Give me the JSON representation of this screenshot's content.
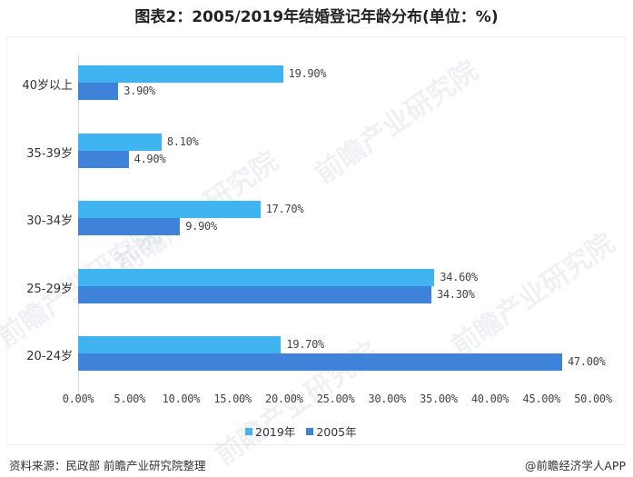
{
  "title": "图表2：2005/2019年结婚登记年龄分布(单位：%)",
  "chart_data": {
    "type": "bar",
    "orientation": "horizontal",
    "title": "图表2：2005/2019年结婚登记年龄分布(单位：%)",
    "categories": [
      "40岁以上",
      "35-39岁",
      "30-34岁",
      "25-29岁",
      "20-24岁"
    ],
    "series": [
      {
        "name": "2019年",
        "color": "#3fb4f0",
        "values": [
          19.9,
          8.1,
          17.7,
          34.6,
          19.7
        ],
        "labels": [
          "19.90%",
          "8.10%",
          "17.70%",
          "34.60%",
          "19.70%"
        ]
      },
      {
        "name": "2005年",
        "color": "#3e82da",
        "values": [
          3.9,
          4.9,
          9.9,
          34.3,
          47.0
        ],
        "labels": [
          "3.90%",
          "4.90%",
          "9.90%",
          "34.30%",
          "47.00%"
        ]
      }
    ],
    "xlabel": "",
    "ylabel": "",
    "xlim": [
      0,
      50
    ],
    "x_ticks": [
      "0.00%",
      "5.00%",
      "10.00%",
      "15.00%",
      "20.00%",
      "25.00%",
      "30.00%",
      "35.00%",
      "40.00%",
      "45.00%",
      "50.00%"
    ],
    "grid": false,
    "legend_position": "bottom"
  },
  "legend": [
    {
      "label": "2019年",
      "color": "#3fb4f0"
    },
    {
      "label": "2005年",
      "color": "#3e82da"
    }
  ],
  "footer": {
    "source": "资料来源：民政部 前瞻产业研究院整理",
    "credit": "@前瞻经济学人APP"
  },
  "watermark": "前瞻产业研究院"
}
